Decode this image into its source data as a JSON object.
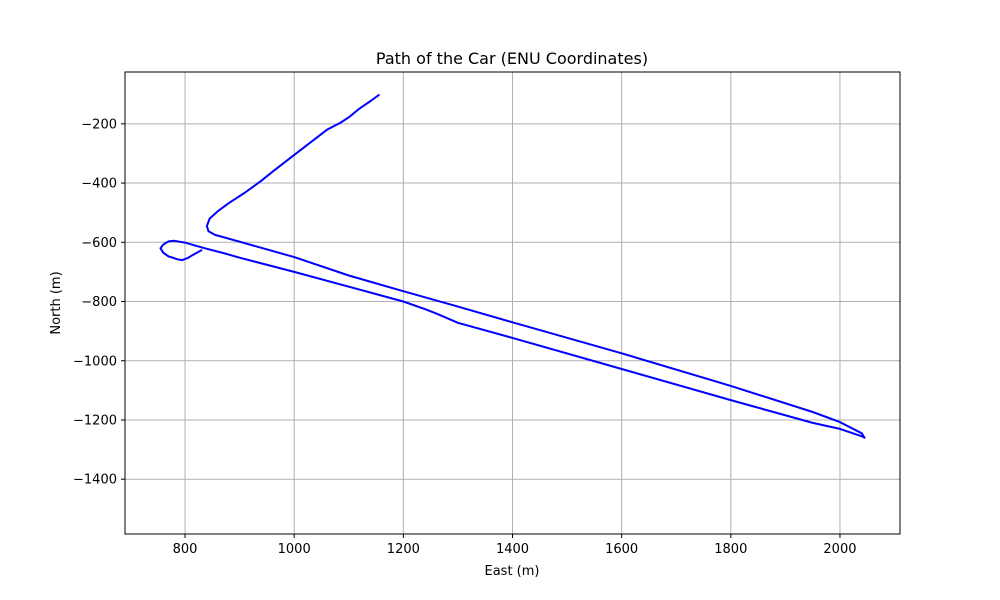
{
  "chart_data": {
    "type": "line",
    "title": "Path of the Car (ENU Coordinates)",
    "xlabel": "East (m)",
    "ylabel": "North (m)",
    "xlim": [
      690,
      2110
    ],
    "ylim": [
      -1585,
      -25
    ],
    "xticks": [
      800,
      1000,
      1200,
      1400,
      1600,
      1800,
      2000
    ],
    "yticks": [
      -200,
      -400,
      -600,
      -800,
      -1000,
      -1200,
      -1400
    ],
    "xtick_labels": [
      "800",
      "1000",
      "1200",
      "1400",
      "1600",
      "1800",
      "2000"
    ],
    "ytick_labels": [
      "−200",
      "−400",
      "−600",
      "−800",
      "−1000",
      "−1200",
      "−1400"
    ],
    "grid": true,
    "line_color": "#0000ff",
    "series": [
      {
        "x": [
          1155,
          1140,
          1120,
          1100,
          1085,
          1060,
          1000,
          960,
          940,
          910,
          880,
          860,
          845,
          840,
          843,
          855,
          900,
          1000,
          1100,
          1200,
          1300,
          1400,
          1600,
          1800,
          1950,
          2000,
          2040,
          2045,
          2040,
          2000,
          1950,
          1800,
          1600,
          1400,
          1300,
          1260,
          1240,
          1200,
          1100,
          1000,
          900,
          870,
          840,
          820,
          800,
          780,
          770,
          765,
          760,
          755,
          760,
          770,
          778,
          785,
          795,
          805,
          815,
          830
        ],
        "y": [
          -103,
          -123,
          -148,
          -178,
          -196,
          -220,
          -305,
          -362,
          -392,
          -432,
          -468,
          -495,
          -520,
          -545,
          -563,
          -575,
          -598,
          -650,
          -712,
          -765,
          -817,
          -870,
          -975,
          -1085,
          -1173,
          -1207,
          -1245,
          -1260,
          -1255,
          -1230,
          -1210,
          -1133,
          -1028,
          -923,
          -872,
          -840,
          -826,
          -800,
          -750,
          -700,
          -652,
          -636,
          -622,
          -612,
          -601,
          -595,
          -597,
          -602,
          -608,
          -620,
          -635,
          -648,
          -652,
          -657,
          -660,
          -653,
          -642,
          -627
        ]
      }
    ]
  }
}
